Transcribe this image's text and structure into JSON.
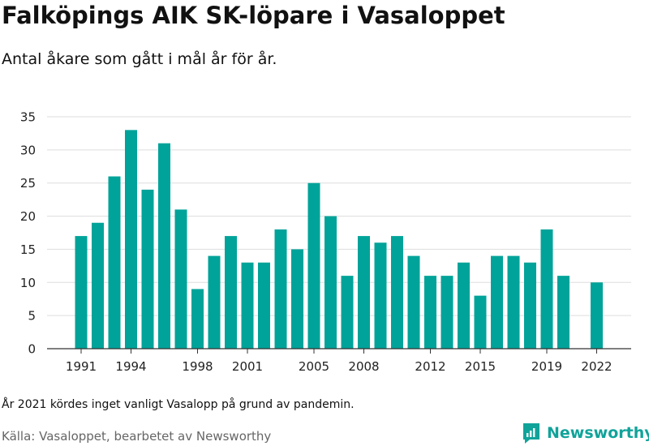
{
  "title": "Falköpings AIK SK-löpare i Vasaloppet",
  "subtitle": "Antal åkare som gått i mål år för år.",
  "note": "År 2021 kördes inget vanligt Vasalopp på grund av pandemin.",
  "source": "Källa: Vasaloppet, bearbetet av Newsworthy",
  "brand": {
    "name": "Newsworthy",
    "logo_icon": "newsworthy-logo-icon"
  },
  "colors": {
    "bar": "#00a399",
    "grid": "#dddddd",
    "brand": "#10a39a"
  },
  "chart_data": {
    "type": "bar",
    "title": "Falköpings AIK SK-löpare i Vasaloppet",
    "subtitle": "Antal åkare som gått i mål år för år.",
    "xlabel": "",
    "ylabel": "",
    "ylim": [
      0,
      35
    ],
    "yticks": [
      0,
      5,
      10,
      15,
      20,
      25,
      30,
      35
    ],
    "xticks": [
      1991,
      1994,
      1998,
      2001,
      2005,
      2008,
      2012,
      2015,
      2019,
      2022
    ],
    "grid": true,
    "categories": [
      1991,
      1992,
      1993,
      1994,
      1995,
      1996,
      1997,
      1998,
      1999,
      2000,
      2001,
      2002,
      2003,
      2004,
      2005,
      2006,
      2007,
      2008,
      2009,
      2010,
      2011,
      2012,
      2013,
      2014,
      2015,
      2016,
      2017,
      2018,
      2019,
      2020,
      2021,
      2022
    ],
    "values": [
      17,
      19,
      26,
      33,
      24,
      31,
      21,
      9,
      14,
      17,
      13,
      13,
      18,
      15,
      25,
      20,
      11,
      17,
      16,
      17,
      14,
      11,
      11,
      13,
      8,
      14,
      14,
      13,
      18,
      11,
      null,
      10
    ]
  }
}
